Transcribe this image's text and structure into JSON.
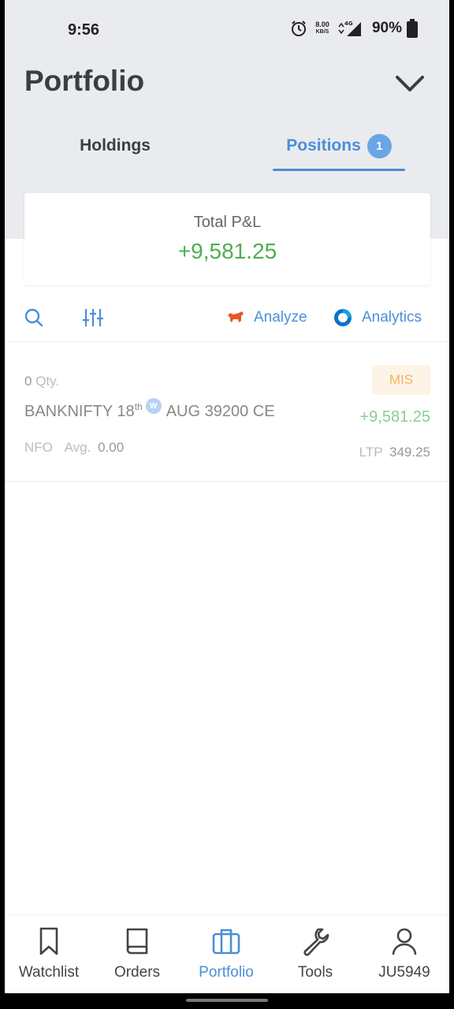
{
  "status_bar": {
    "time": "9:56",
    "net_speed_value": "8.00",
    "net_speed_unit": "KB/S",
    "network_type": "4G",
    "battery": "90%"
  },
  "header": {
    "title": "Portfolio"
  },
  "tabs": [
    {
      "label": "Holdings",
      "active": false
    },
    {
      "label": "Positions",
      "active": true,
      "badge": "1"
    }
  ],
  "summary": {
    "label": "Total P&L",
    "value": "+9,581.25"
  },
  "toolbar": {
    "analyze_label": "Analyze",
    "analytics_label": "Analytics"
  },
  "positions": [
    {
      "qty": "0",
      "qty_unit": "Qty.",
      "product": "MIS",
      "symbol": "BANKNIFTY 18",
      "ordinal": "th",
      "weekly_badge": "W",
      "symbol_rest": "AUG 39200 CE",
      "pnl": "+9,581.25",
      "exchange": "NFO",
      "avg_label": "Avg.",
      "avg_value": "0.00",
      "ltp_label": "LTP",
      "ltp_value": "349.25"
    }
  ],
  "bottom_nav": [
    {
      "label": "Watchlist",
      "icon": "bookmark-icon"
    },
    {
      "label": "Orders",
      "icon": "book-icon"
    },
    {
      "label": "Portfolio",
      "icon": "briefcase-icon",
      "active": true
    },
    {
      "label": "Tools",
      "icon": "wrench-icon"
    },
    {
      "label": "JU5949",
      "icon": "user-icon"
    }
  ],
  "colors": {
    "accent": "#4a8fd8",
    "profit": "#4caf50",
    "header_bg": "#e9ebee",
    "product_tag": "#f4b55e"
  }
}
